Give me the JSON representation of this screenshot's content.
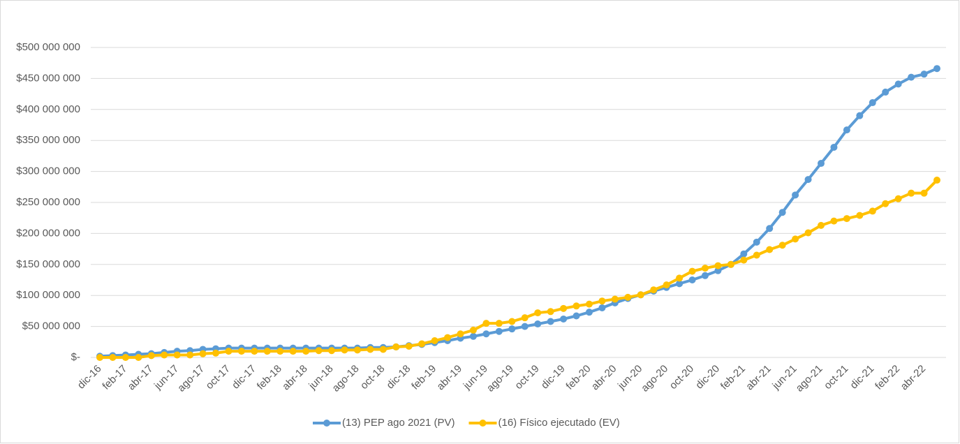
{
  "chart_data": {
    "type": "line",
    "categories": [
      "dic-16",
      null,
      "feb-17",
      null,
      "abr-17",
      null,
      "jun-17",
      null,
      "ago-17",
      null,
      "oct-17",
      null,
      "dic-17",
      null,
      "feb-18",
      null,
      "abr-18",
      null,
      "jun-18",
      null,
      "ago-18",
      null,
      "oct-18",
      null,
      "dic-18",
      null,
      "feb-19",
      null,
      "abr-19",
      null,
      "jun-19",
      null,
      "ago-19",
      null,
      "oct-19",
      null,
      "dic-19",
      null,
      "feb-20",
      null,
      "abr-20",
      null,
      "jun-20",
      null,
      "ago-20",
      null,
      "oct-20",
      null,
      "dic-20",
      null,
      "feb-21",
      null,
      "abr-21",
      null,
      "jun-21",
      null,
      "ago-21",
      null,
      "oct-21",
      null,
      "dic-21",
      null,
      "feb-22",
      null,
      "abr-22",
      null
    ],
    "series": [
      {
        "name": "(13) PEP ago 2021 (PV)",
        "color": "#5b9bd5",
        "values": [
          2000000,
          3000000,
          4000000,
          5000000,
          6000000,
          8000000,
          10000000,
          11000000,
          13000000,
          14000000,
          15000000,
          15000000,
          15000000,
          15000000,
          15000000,
          15000000,
          15000000,
          15000000,
          15000000,
          15000000,
          15000000,
          16000000,
          16000000,
          17000000,
          19000000,
          21000000,
          24000000,
          27000000,
          31000000,
          34000000,
          38000000,
          42000000,
          46000000,
          50000000,
          54000000,
          58000000,
          62000000,
          67000000,
          73000000,
          80000000,
          88000000,
          95000000,
          101000000,
          107000000,
          113000000,
          119000000,
          125000000,
          132000000,
          140000000,
          150000000,
          167000000,
          186000000,
          208000000,
          234000000,
          262000000,
          287000000,
          313000000,
          339000000,
          367000000,
          390000000,
          411000000,
          428000000,
          441000000,
          452000000,
          457000000,
          466000000
        ]
      },
      {
        "name": "(16) Físico ejecutado (EV)",
        "color": "#ffc000",
        "values": [
          0,
          0,
          0,
          0,
          3000000,
          4000000,
          4000000,
          4000000,
          6000000,
          7000000,
          10000000,
          10000000,
          10000000,
          10000000,
          10000000,
          10000000,
          10000000,
          11000000,
          11000000,
          12000000,
          12000000,
          13000000,
          13000000,
          17000000,
          18000000,
          22000000,
          27000000,
          32000000,
          38000000,
          44000000,
          55000000,
          55000000,
          58000000,
          64000000,
          72000000,
          74000000,
          79000000,
          83000000,
          86000000,
          91000000,
          94000000,
          97000000,
          101000000,
          109000000,
          117000000,
          128000000,
          139000000,
          144000000,
          148000000,
          150000000,
          157000000,
          165000000,
          174000000,
          181000000,
          191000000,
          201000000,
          213000000,
          220000000,
          224000000,
          229000000,
          236000000,
          248000000,
          256000000,
          265000000,
          265000000,
          286000000
        ]
      }
    ],
    "ylim": [
      0,
      500000000
    ],
    "yticks": [
      {
        "value": 0,
        "label": "$-"
      },
      {
        "value": 50000000,
        "label": "$50 000 000"
      },
      {
        "value": 100000000,
        "label": "$100 000 000"
      },
      {
        "value": 150000000,
        "label": "$150 000 000"
      },
      {
        "value": 200000000,
        "label": "$200 000 000"
      },
      {
        "value": 250000000,
        "label": "$250 000 000"
      },
      {
        "value": 300000000,
        "label": "$300 000 000"
      },
      {
        "value": 350000000,
        "label": "$350 000 000"
      },
      {
        "value": 400000000,
        "label": "$400 000 000"
      },
      {
        "value": 450000000,
        "label": "$450 000 000"
      },
      {
        "value": 500000000,
        "label": "$500 000 000"
      }
    ],
    "grid": true,
    "legend": "bottom"
  }
}
